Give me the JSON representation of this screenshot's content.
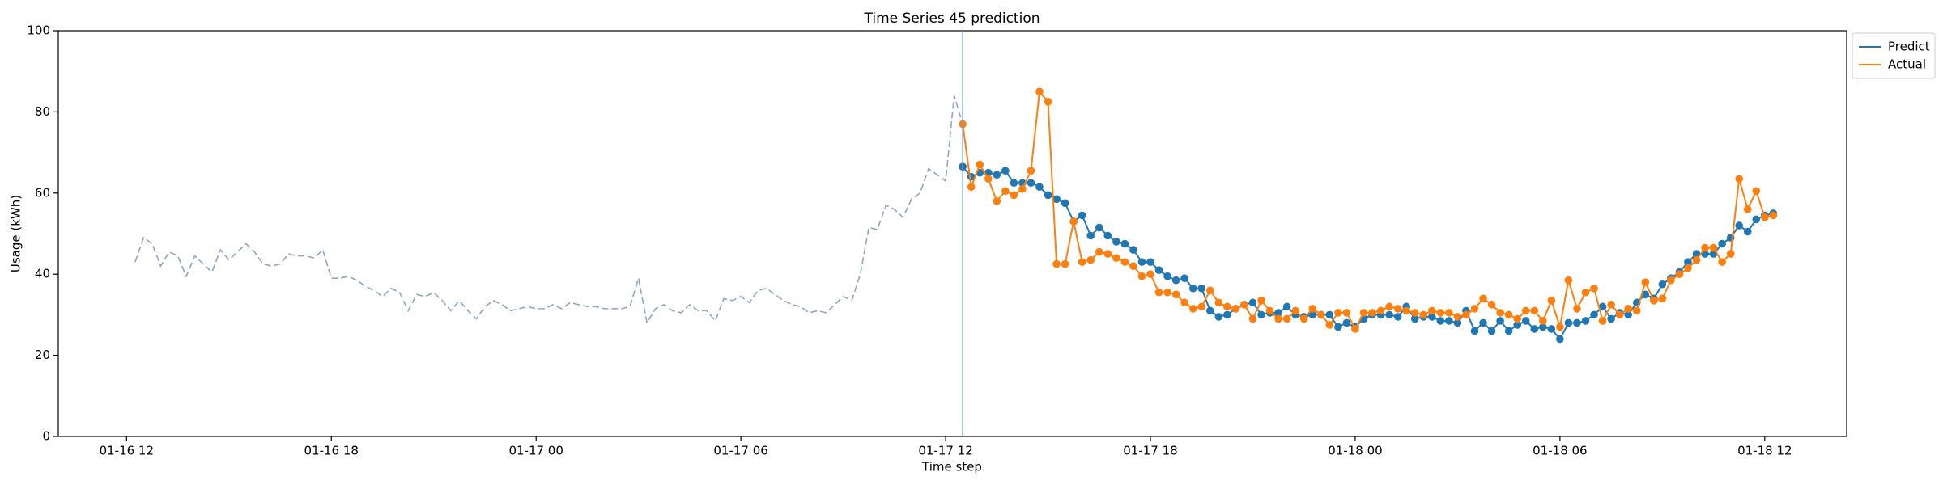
{
  "chart_data": {
    "type": "line",
    "title": "Time Series 45 prediction",
    "xlabel": "Time step",
    "ylabel": "Usage (kWh)",
    "xlim": [
      10,
      62.4
    ],
    "ylim": [
      0,
      100
    ],
    "xticks": [
      {
        "value": 12,
        "label": "01-16 12"
      },
      {
        "value": 18,
        "label": "01-16 18"
      },
      {
        "value": 24,
        "label": "01-17 00"
      },
      {
        "value": 30,
        "label": "01-17 06"
      },
      {
        "value": 36,
        "label": "01-17 12"
      },
      {
        "value": 42,
        "label": "01-17 18"
      },
      {
        "value": 48,
        "label": "01-18 00"
      },
      {
        "value": 54,
        "label": "01-18 06"
      },
      {
        "value": 60,
        "label": "01-18 12"
      }
    ],
    "yticks": [
      0,
      20,
      40,
      60,
      80,
      100
    ],
    "vline": 36.5,
    "vline_color": "#7f9fcf",
    "legend": "upper-right-outside",
    "series": [
      {
        "color": "#8ea6c6",
        "linestyle": "dashed",
        "marker": false,
        "x": [
          12.25,
          12.5,
          12.75,
          13,
          13.25,
          13.5,
          13.75,
          14,
          14.25,
          14.5,
          14.75,
          15,
          15.25,
          15.5,
          15.75,
          16,
          16.25,
          16.5,
          16.75,
          17,
          17.25,
          17.5,
          17.75,
          18,
          18.25,
          18.5,
          18.75,
          19,
          19.25,
          19.5,
          19.75,
          20,
          20.25,
          20.5,
          20.75,
          21,
          21.25,
          21.5,
          21.75,
          22,
          22.25,
          22.5,
          22.75,
          23,
          23.25,
          23.5,
          23.75,
          24,
          24.25,
          24.5,
          24.75,
          25,
          25.25,
          25.5,
          25.75,
          26,
          26.25,
          26.5,
          26.75,
          27,
          27.25,
          27.5,
          27.75,
          28,
          28.25,
          28.5,
          28.75,
          29,
          29.25,
          29.5,
          29.75,
          30,
          30.25,
          30.5,
          30.75,
          31,
          31.25,
          31.5,
          31.75,
          32,
          32.25,
          32.5,
          32.75,
          33,
          33.25,
          33.5,
          33.75,
          34,
          34.25,
          34.5,
          34.75,
          35,
          35.25,
          35.5,
          35.75,
          36,
          36.25,
          36.5
        ],
        "values": [
          43,
          49,
          47.5,
          42,
          45.5,
          44.5,
          39.5,
          44.5,
          42.5,
          40.5,
          46,
          43.5,
          45.5,
          47.5,
          45.5,
          42.5,
          42,
          42.5,
          45,
          44.5,
          44.5,
          44,
          46,
          39,
          39,
          39.5,
          38.5,
          37,
          36,
          34.5,
          36.5,
          35.5,
          31,
          35,
          34.5,
          35.5,
          33.5,
          31,
          33.5,
          31,
          29,
          32,
          33.5,
          32.5,
          31,
          31.5,
          32,
          31.5,
          31.5,
          32.5,
          31.5,
          33,
          32.5,
          32,
          32,
          31.5,
          31.5,
          31.5,
          32,
          39,
          28,
          31.5,
          32.5,
          31,
          30.5,
          32.5,
          31,
          31,
          28.5,
          34,
          33.5,
          34.5,
          33,
          36,
          36.5,
          35,
          33.5,
          32.5,
          32,
          30.5,
          31,
          30.5,
          32.5,
          34.5,
          33.5,
          40,
          51.5,
          51,
          57,
          56,
          54,
          58.5,
          60,
          66,
          64.5,
          63,
          84,
          77
        ]
      },
      {
        "name": "Predict",
        "color": "#1f77b4",
        "linestyle": "solid",
        "marker": true,
        "x": [
          36.5,
          36.75,
          37,
          37.25,
          37.5,
          37.75,
          38,
          38.25,
          38.5,
          38.75,
          39,
          39.25,
          39.5,
          39.75,
          40,
          40.25,
          40.5,
          40.75,
          41,
          41.25,
          41.5,
          41.75,
          42,
          42.25,
          42.5,
          42.75,
          43,
          43.25,
          43.5,
          43.75,
          44,
          44.25,
          44.5,
          44.75,
          45,
          45.25,
          45.5,
          45.75,
          46,
          46.25,
          46.5,
          46.75,
          47,
          47.25,
          47.5,
          47.75,
          48,
          48.25,
          48.5,
          48.75,
          49,
          49.25,
          49.5,
          49.75,
          50,
          50.25,
          50.5,
          50.75,
          51,
          51.25,
          51.5,
          51.75,
          52,
          52.25,
          52.5,
          52.75,
          53,
          53.25,
          53.5,
          53.75,
          54,
          54.25,
          54.5,
          54.75,
          55,
          55.25,
          55.5,
          55.75,
          56,
          56.25,
          56.5,
          56.75,
          57,
          57.25,
          57.5,
          57.75,
          58,
          58.25,
          58.5,
          58.75,
          59,
          59.25,
          59.5,
          59.75,
          60,
          60.25
        ],
        "values": [
          66.5,
          64,
          65,
          65,
          64.5,
          65.5,
          62.5,
          62.5,
          62.5,
          61.5,
          59.5,
          58.5,
          57.5,
          53,
          54.5,
          49.5,
          51.5,
          49.5,
          48,
          47.5,
          46,
          43,
          43,
          41,
          39.5,
          38.5,
          39,
          36.5,
          36.5,
          31,
          29.5,
          30,
          31.5,
          32.5,
          33,
          30,
          30.5,
          30.5,
          32,
          30,
          29.5,
          30,
          30,
          30,
          27,
          28,
          27,
          29,
          30,
          30,
          30,
          29.5,
          32,
          29,
          29.5,
          29.5,
          28.5,
          28.5,
          28,
          31,
          26,
          28,
          26,
          28.5,
          26,
          27.5,
          28.5,
          26.5,
          27,
          26.5,
          24,
          28,
          28,
          28.5,
          30,
          32,
          29,
          30.5,
          30,
          33,
          35,
          34,
          37.5,
          39,
          40.5,
          43,
          45,
          45,
          45,
          47.5,
          49,
          52,
          50.5,
          53.5,
          54.5,
          55
        ]
      },
      {
        "name": "Actual",
        "color": "#ff7f0e",
        "linestyle": "solid",
        "marker": true,
        "x": [
          36.5,
          36.75,
          37,
          37.25,
          37.5,
          37.75,
          38,
          38.25,
          38.5,
          38.75,
          39,
          39.25,
          39.5,
          39.75,
          40,
          40.25,
          40.5,
          40.75,
          41,
          41.25,
          41.5,
          41.75,
          42,
          42.25,
          42.5,
          42.75,
          43,
          43.25,
          43.5,
          43.75,
          44,
          44.25,
          44.5,
          44.75,
          45,
          45.25,
          45.5,
          45.75,
          46,
          46.25,
          46.5,
          46.75,
          47,
          47.25,
          47.5,
          47.75,
          48,
          48.25,
          48.5,
          48.75,
          49,
          49.25,
          49.5,
          49.75,
          50,
          50.25,
          50.5,
          50.75,
          51,
          51.25,
          51.5,
          51.75,
          52,
          52.25,
          52.5,
          52.75,
          53,
          53.25,
          53.5,
          53.75,
          54,
          54.25,
          54.5,
          54.75,
          55,
          55.25,
          55.5,
          55.75,
          56,
          56.25,
          56.5,
          56.75,
          57,
          57.25,
          57.5,
          57.75,
          58,
          58.25,
          58.5,
          58.75,
          59,
          59.25,
          59.5,
          59.75,
          60,
          60.25
        ],
        "values": [
          77,
          61.5,
          67,
          63.5,
          58,
          60.5,
          59.5,
          61,
          65.5,
          85,
          82.5,
          42.5,
          42.5,
          53,
          43,
          43.5,
          45.5,
          45,
          44,
          43,
          42,
          39.5,
          40,
          35.5,
          35.5,
          35,
          33,
          31.5,
          32,
          36,
          33,
          32,
          31.5,
          32.5,
          29,
          33.5,
          31,
          29,
          29,
          31,
          29,
          31.5,
          30,
          27.5,
          30.5,
          30.5,
          26.5,
          30.5,
          30.5,
          31,
          32,
          31.5,
          31,
          30.5,
          30,
          31,
          30.5,
          30.5,
          29.5,
          30,
          31.5,
          34,
          32.5,
          30.5,
          30,
          29,
          31,
          31,
          28.5,
          33.5,
          27,
          38.5,
          31.5,
          35.5,
          36.5,
          28.5,
          32.5,
          30,
          31.5,
          31,
          38,
          33.5,
          34,
          38.5,
          40,
          41.5,
          43.5,
          46.5,
          46.5,
          43,
          45,
          63.5,
          56,
          60.5,
          54,
          54.5
        ]
      }
    ]
  }
}
